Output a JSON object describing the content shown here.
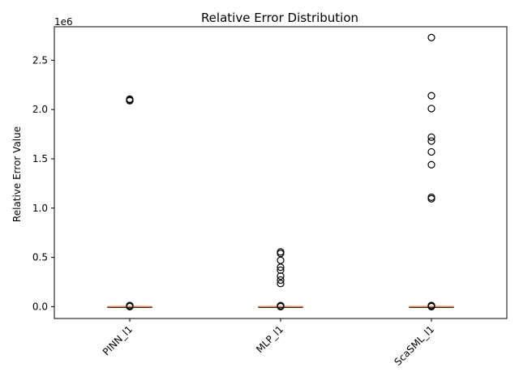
{
  "chart_data": {
    "type": "box",
    "title": "Relative Error Distribution",
    "xlabel": "",
    "ylabel": "Relative Error Value",
    "y_scale_label": "1e6",
    "ylim": [
      -120000,
      2840000
    ],
    "yticks": [
      0,
      500000,
      1000000,
      1500000,
      2000000,
      2500000
    ],
    "ytick_labels": [
      "0.0",
      "0.5",
      "1.0",
      "1.5",
      "2.0",
      "2.5"
    ],
    "grid": false,
    "median_color": "#dd8452",
    "categories": [
      "PINN_l1",
      "MLP_l1",
      "ScaSML_l1"
    ],
    "boxes": [
      {
        "name": "PINN_l1",
        "q1": 0,
        "median": 0,
        "q3": 0,
        "whisker_low": 0,
        "whisker_high": 0,
        "outliers": [
          2090000,
          2095000,
          2100000,
          2105000,
          0,
          2500,
          5000,
          8000,
          10000,
          12000
        ]
      },
      {
        "name": "MLP_l1",
        "q1": 0,
        "median": 0,
        "q3": 0,
        "whisker_low": 0,
        "whisker_high": 0,
        "outliers": [
          555000,
          540000,
          470000,
          400000,
          370000,
          310000,
          270000,
          235000,
          0,
          3000,
          6000,
          9000,
          11000
        ]
      },
      {
        "name": "ScaSML_l1",
        "q1": 0,
        "median": 0,
        "q3": 0,
        "whisker_low": 0,
        "whisker_high": 0,
        "outliers": [
          2730000,
          2140000,
          2010000,
          1720000,
          1680000,
          1570000,
          1440000,
          1110000,
          1095000,
          0,
          3000,
          6000,
          9000,
          12000
        ]
      }
    ]
  }
}
